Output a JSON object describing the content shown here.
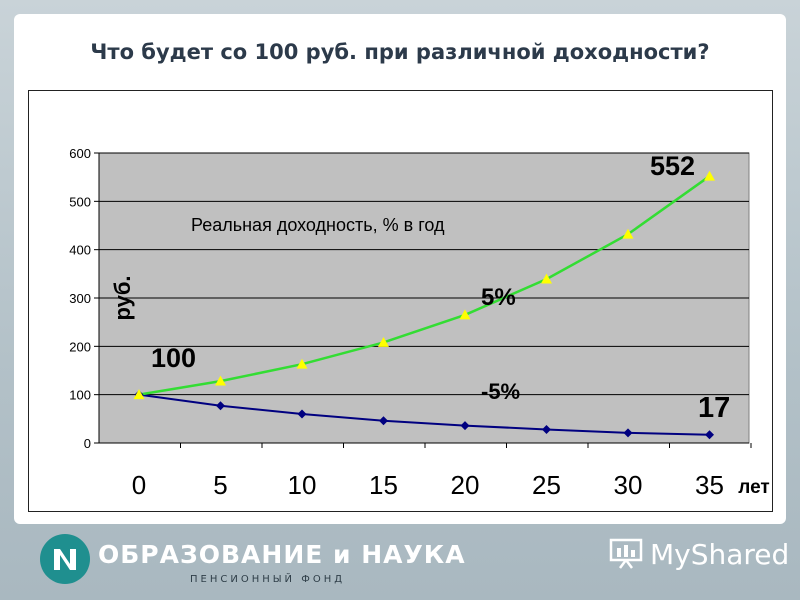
{
  "slide": {
    "title": "Что будет со 100 руб. при различной доходности?"
  },
  "footer": {
    "brand": "ОБРАЗОВАНИЕ и НАУКА",
    "brand_sub": "ПЕНСИОННЫЙ ФОНД",
    "watermark": "MyShared"
  },
  "chart_data": {
    "type": "line",
    "x": [
      0,
      5,
      10,
      15,
      20,
      25,
      30,
      35
    ],
    "xticks": [
      "0",
      "5",
      "10",
      "15",
      "20",
      "25",
      "30",
      "35"
    ],
    "xlabel": "лет",
    "ylabel": "руб.",
    "ylim": [
      0,
      600
    ],
    "yticks": [
      0,
      100,
      200,
      300,
      400,
      500,
      600
    ],
    "grid": true,
    "plot_background": "#c0c0c0",
    "annotation": "Реальная доходность, % в год",
    "series": [
      {
        "name": "5%",
        "color": "#33dd33",
        "marker": "triangle",
        "marker_color": "#ffff00",
        "values": [
          100,
          128,
          163,
          208,
          265,
          339,
          432,
          552
        ]
      },
      {
        "name": "-5%",
        "color": "#000080",
        "marker": "diamond",
        "marker_color": "#000080",
        "values": [
          100,
          77,
          60,
          46,
          36,
          28,
          21,
          17
        ]
      }
    ],
    "data_labels": {
      "start": "100",
      "end_up": "552",
      "end_down": "17"
    }
  }
}
